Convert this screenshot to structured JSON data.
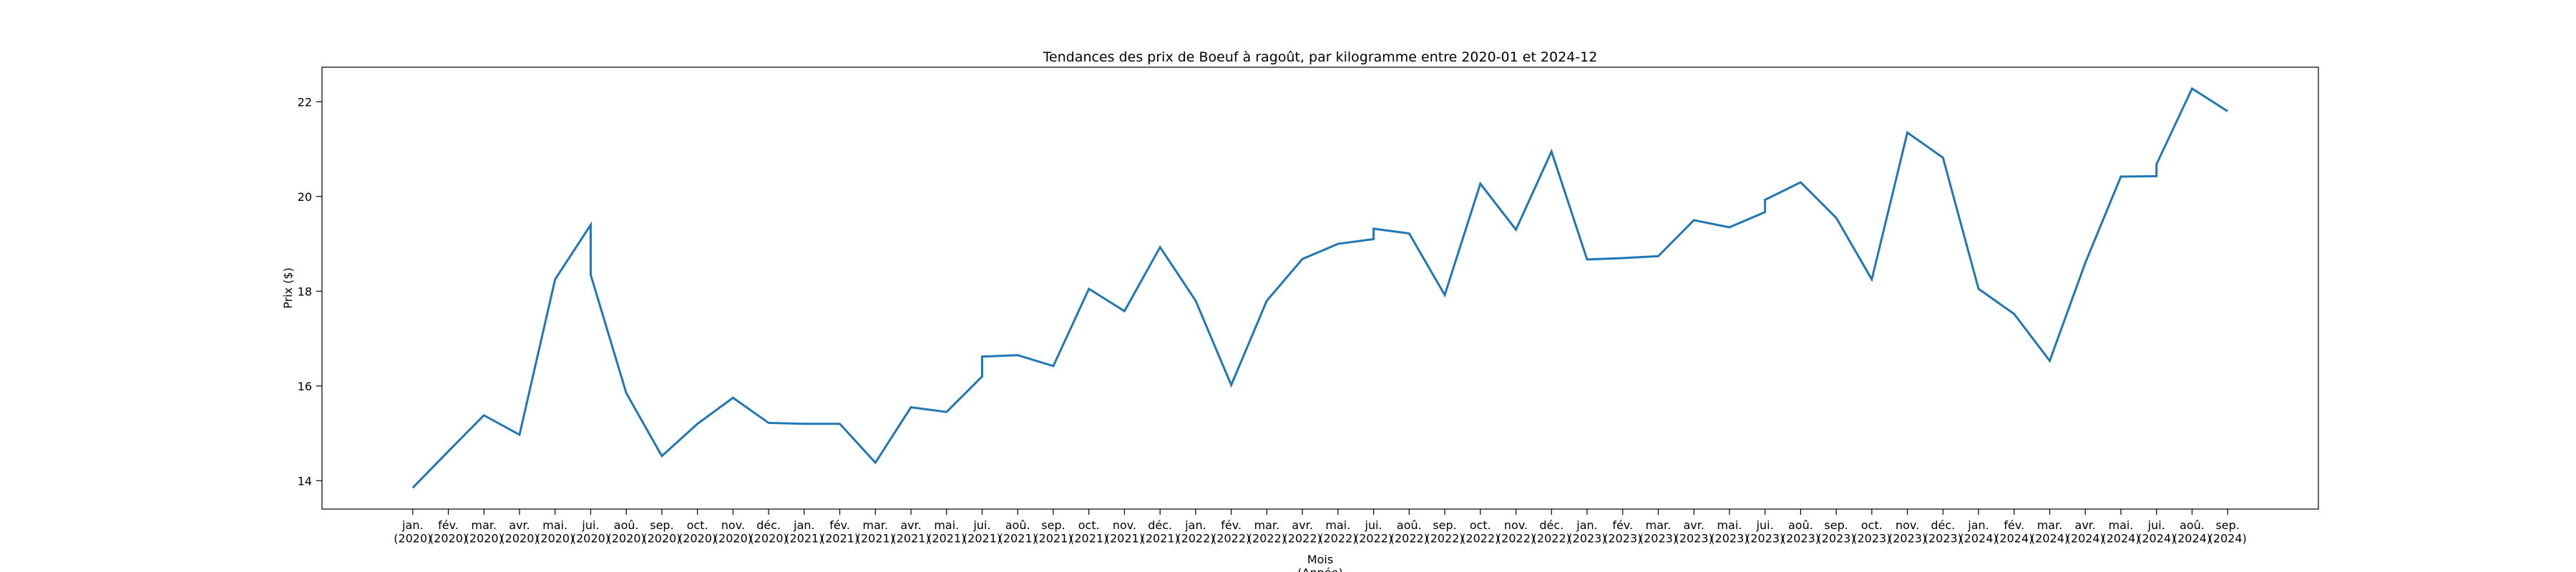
{
  "chart_data": {
    "type": "line",
    "title": "Tendances des prix de Boeuf à ragoût, par kilogramme entre 2020-01 et 2024-12",
    "x_label": "Mois\n(Année)",
    "y_label": "Prix ($)",
    "categories": [
      "jan.\n(2020)",
      "fév.\n(2020)",
      "mar.\n(2020)",
      "avr.\n(2020)",
      "mai.\n(2020)",
      "jui.\n(2020)",
      "jui.\n(2020)",
      "aoû.\n(2020)",
      "sep.\n(2020)",
      "oct.\n(2020)",
      "nov.\n(2020)",
      "déc.\n(2020)",
      "jan.\n(2021)",
      "fév.\n(2021)",
      "mar.\n(2021)",
      "avr.\n(2021)",
      "mai.\n(2021)",
      "jui.\n(2021)",
      "jui.\n(2021)",
      "aoû.\n(2021)",
      "sep.\n(2021)",
      "oct.\n(2021)",
      "nov.\n(2021)",
      "déc.\n(2021)",
      "jan.\n(2022)",
      "fév.\n(2022)",
      "mar.\n(2022)",
      "avr.\n(2022)",
      "mai.\n(2022)",
      "jui.\n(2022)",
      "jui.\n(2022)",
      "aoû.\n(2022)",
      "sep.\n(2022)",
      "oct.\n(2022)",
      "nov.\n(2022)",
      "déc.\n(2022)",
      "jan.\n(2023)",
      "fév.\n(2023)",
      "mar.\n(2023)",
      "avr.\n(2023)",
      "mai.\n(2023)",
      "jui.\n(2023)",
      "jui.\n(2023)",
      "aoû.\n(2023)",
      "sep.\n(2023)",
      "oct.\n(2023)",
      "nov.\n(2023)",
      "déc.\n(2023)",
      "jan.\n(2024)",
      "fév.\n(2024)",
      "mar.\n(2024)",
      "avr.\n(2024)",
      "mai.\n(2024)",
      "jui.\n(2024)",
      "jui.\n(2024)",
      "aoû.\n(2024)",
      "sep.\n(2024)"
    ],
    "values": [
      13.85,
      14.62,
      15.38,
      14.97,
      18.25,
      19.4,
      18.35,
      15.85,
      14.52,
      15.2,
      15.75,
      15.22,
      15.2,
      15.2,
      14.38,
      15.55,
      15.45,
      16.2,
      16.62,
      16.65,
      16.42,
      18.05,
      17.58,
      18.93,
      17.8,
      16.02,
      17.8,
      18.68,
      19.0,
      19.1,
      19.32,
      19.22,
      17.92,
      20.27,
      19.3,
      20.95,
      18.67,
      18.7,
      18.74,
      19.5,
      19.35,
      19.67,
      19.93,
      20.3,
      19.55,
      18.25,
      21.35,
      20.82,
      18.05,
      17.52,
      16.53,
      18.6,
      20.42,
      20.43,
      20.68,
      22.28,
      21.8
    ],
    "color": "#1f77b4",
    "ylim": [
      13.4,
      22.73
    ],
    "yticks": [
      14,
      16,
      18,
      20,
      22
    ],
    "grid": false
  }
}
